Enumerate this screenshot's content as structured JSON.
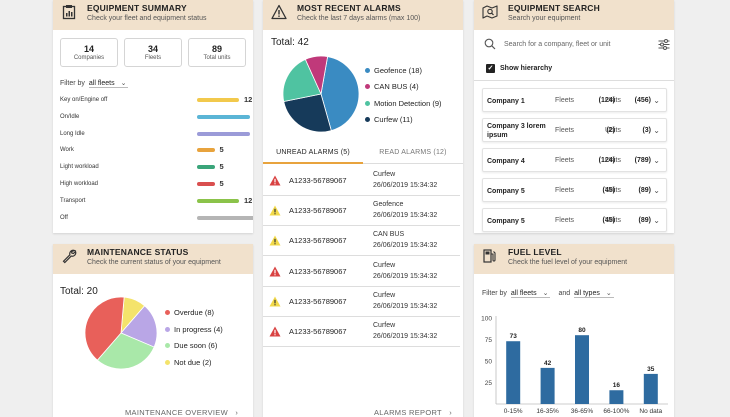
{
  "colors": {
    "header_bg": "#f1e1cc",
    "accent_orange": "#e8a33d",
    "bar_blue": "#2e6ba0",
    "danger": "#d94242",
    "warning": "#f2d94a"
  },
  "equipment_summary": {
    "title": "EQUIPMENT SUMMARY",
    "subtitle": "Check your fleet and equipment status",
    "icon": "clipboard-icon",
    "stats": [
      {
        "value": "14",
        "label": "Companies"
      },
      {
        "value": "34",
        "label": "Fleets"
      },
      {
        "value": "89",
        "label": "Total units"
      }
    ],
    "filter_label": "Filter by",
    "filter_value": "all fleets",
    "bars": [
      {
        "label": "Key on/Engine off",
        "value": 12,
        "color": "#f2c94c"
      },
      {
        "label": "On/Idle",
        "value": 15,
        "color": "#5bb5d6"
      },
      {
        "label": "Long Idle",
        "value": 15,
        "color": "#9b9bd8"
      },
      {
        "label": "Work",
        "value": 5,
        "color": "#e8a33d"
      },
      {
        "label": "Light workload",
        "value": 5,
        "color": "#3aa57a"
      },
      {
        "label": "High workload",
        "value": 5,
        "color": "#d94f4f"
      },
      {
        "label": "Transport",
        "value": 12,
        "color": "#8bc34a"
      },
      {
        "label": "Off",
        "value": 20,
        "color": "#b5b5b5"
      }
    ],
    "bar_max": 20
  },
  "recent_alarms": {
    "title": "MOST RECENT ALARMS",
    "subtitle": "Check the last 7 days alarms (max 100)",
    "icon": "warning-icon",
    "total_label": "Total: 42",
    "slices": [
      {
        "label": "Geofence (18)",
        "value": 18,
        "color": "#3a8bc2"
      },
      {
        "label": "CAN BUS (4)",
        "value": 4,
        "color": "#c0397a"
      },
      {
        "label": "Motion Detection (9)",
        "value": 9,
        "color": "#4fc3a1"
      },
      {
        "label": "Curfew (11)",
        "value": 11,
        "color": "#163a5a"
      }
    ],
    "tabs": [
      {
        "label": "UNREAD ALARMS (5)",
        "active": true
      },
      {
        "label": "READ ALARMS (12)",
        "active": false
      }
    ],
    "alarms": [
      {
        "severity": "danger",
        "id": "A1233-56789067",
        "type": "Curfew",
        "date": "26/06/2019 15:34:32"
      },
      {
        "severity": "warning",
        "id": "A1233-56789067",
        "type": "Geofence",
        "date": "26/06/2019 15:34:32"
      },
      {
        "severity": "warning",
        "id": "A1233-56789067",
        "type": "CAN BUS",
        "date": "26/06/2019 15:34:32"
      },
      {
        "severity": "danger",
        "id": "A1233-56789067",
        "type": "Curfew",
        "date": "26/06/2019 15:34:32"
      },
      {
        "severity": "warning",
        "id": "A1233-56789067",
        "type": "Curfew",
        "date": "26/06/2019 15:34:32"
      },
      {
        "severity": "danger",
        "id": "A1233-56789067",
        "type": "Curfew",
        "date": "26/06/2019 15:34:32"
      }
    ],
    "footer_link": "ALARMS REPORT"
  },
  "equipment_search": {
    "title": "EQUIPMENT SEARCH",
    "subtitle": "Search your equipment",
    "icon": "search-map-icon",
    "search_placeholder": "Search for a company, fleet or unit",
    "show_hierarchy": "Show hierarchy",
    "fleets_label": "Fleets",
    "units_label": "Units",
    "companies": [
      {
        "name": "Company 1",
        "fleets": "(124)",
        "units": "(456)"
      },
      {
        "name": "Company 3 lorem ipsum",
        "fleets": "(2)",
        "units": "(3)"
      },
      {
        "name": "Company 4",
        "fleets": "(124)",
        "units": "(789)"
      },
      {
        "name": "Company 5",
        "fleets": "(45)",
        "units": "(89)"
      },
      {
        "name": "Company 5",
        "fleets": "(45)",
        "units": "(89)"
      }
    ]
  },
  "maintenance_status": {
    "title": "MAINTENANCE STATUS",
    "subtitle": "Check the current status of your equipment",
    "icon": "wrench-icon",
    "total_label": "Total: 20",
    "slices": [
      {
        "label": "Overdue (8)",
        "value": 8,
        "color": "#e8605a"
      },
      {
        "label": "In progress (4)",
        "value": 4,
        "color": "#b9a6e6"
      },
      {
        "label": "Due soon (6)",
        "value": 6,
        "color": "#a9e8a9"
      },
      {
        "label": "Not due (2)",
        "value": 2,
        "color": "#f4e36b"
      }
    ],
    "footer_link": "MAINTENANCE OVERVIEW"
  },
  "fuel_level": {
    "title": "FUEL LEVEL",
    "subtitle": "Check the fuel level of your equipment",
    "icon": "fuel-pump-icon",
    "filter_label": "Filter by",
    "filter_fleets": "all fleets",
    "and_label": "and",
    "filter_types": "all types"
  },
  "chart_data": {
    "type": "bar",
    "title": "FUEL LEVEL",
    "categories": [
      "0-15%",
      "16-35%",
      "36-65%",
      "66-100%",
      "No data"
    ],
    "values": [
      73,
      42,
      80,
      16,
      35
    ],
    "yticks": [
      25,
      50,
      75,
      100
    ],
    "ylim": [
      0,
      100
    ],
    "xlabel": "",
    "ylabel": ""
  }
}
